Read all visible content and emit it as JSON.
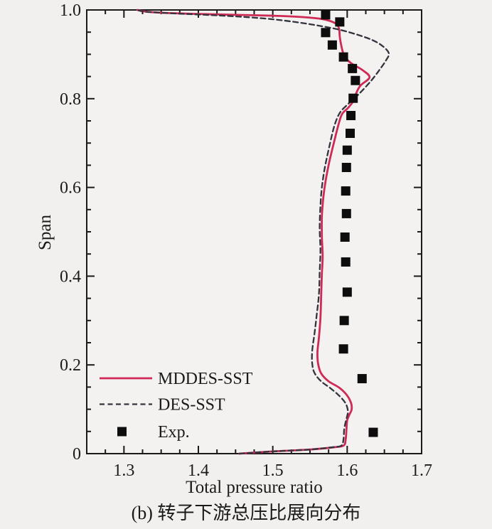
{
  "figure": {
    "caption": "(b) 转子下游总压比展向分布"
  },
  "colors": {
    "background": "#f1f0ee",
    "plot_fill": "#f3f2f0",
    "axis": "#1a1a1a",
    "mddes_line": "#ce2a55",
    "des_line": "#34343e",
    "exp_marker": "#0d0d0d"
  },
  "chart_data": {
    "type": "line",
    "title": "",
    "xlabel": "Total pressure ratio",
    "ylabel": "Span",
    "xlim": [
      1.25,
      1.7
    ],
    "ylim": [
      0.0,
      1.0
    ],
    "grid": false,
    "legend_position": "inside-lower-left",
    "xticks": {
      "major": [
        1.3,
        1.4,
        1.5,
        1.6,
        1.7
      ],
      "labels": [
        "1.3",
        "1.4",
        "1.5",
        "1.6",
        "1.7"
      ],
      "minor_step": 0.025
    },
    "yticks": {
      "major": [
        0.0,
        0.2,
        0.4,
        0.6,
        0.8,
        1.0
      ],
      "labels": [
        "0",
        "0.2",
        "0.4",
        "0.6",
        "0.8",
        "1.0"
      ],
      "minor_step": 0.05
    },
    "series": [
      {
        "name": "MDDES-SST",
        "type": "line",
        "style": "solid",
        "color": "#ce2a55",
        "width": 2.8,
        "points": [
          [
            1.455,
            0.0
          ],
          [
            1.5,
            0.005
          ],
          [
            1.548,
            0.009
          ],
          [
            1.58,
            0.014
          ],
          [
            1.595,
            0.018
          ],
          [
            1.598,
            0.032
          ],
          [
            1.599,
            0.055
          ],
          [
            1.6,
            0.075
          ],
          [
            1.603,
            0.088
          ],
          [
            1.606,
            0.1
          ],
          [
            1.605,
            0.115
          ],
          [
            1.599,
            0.133
          ],
          [
            1.589,
            0.149
          ],
          [
            1.575,
            0.163
          ],
          [
            1.565,
            0.181
          ],
          [
            1.561,
            0.202
          ],
          [
            1.56,
            0.228
          ],
          [
            1.562,
            0.262
          ],
          [
            1.564,
            0.305
          ],
          [
            1.565,
            0.355
          ],
          [
            1.566,
            0.405
          ],
          [
            1.567,
            0.445
          ],
          [
            1.566,
            0.49
          ],
          [
            1.566,
            0.535
          ],
          [
            1.568,
            0.578
          ],
          [
            1.571,
            0.615
          ],
          [
            1.576,
            0.658
          ],
          [
            1.582,
            0.7
          ],
          [
            1.588,
            0.74
          ],
          [
            1.593,
            0.765
          ],
          [
            1.601,
            0.779
          ],
          [
            1.608,
            0.794
          ],
          [
            1.612,
            0.812
          ],
          [
            1.618,
            0.83
          ],
          [
            1.63,
            0.848
          ],
          [
            1.621,
            0.864
          ],
          [
            1.608,
            0.877
          ],
          [
            1.6,
            0.888
          ],
          [
            1.595,
            0.901
          ],
          [
            1.592,
            0.92
          ],
          [
            1.59,
            0.94
          ],
          [
            1.589,
            0.958
          ],
          [
            1.584,
            0.97
          ],
          [
            1.568,
            0.979
          ],
          [
            1.54,
            0.984
          ],
          [
            1.5,
            0.987
          ],
          [
            1.45,
            0.989
          ],
          [
            1.4,
            0.991
          ],
          [
            1.36,
            0.993
          ],
          [
            1.33,
            0.996
          ],
          [
            1.318,
            1.0
          ]
        ]
      },
      {
        "name": "DES-SST",
        "type": "line",
        "style": "dashed",
        "color": "#34343e",
        "width": 2.3,
        "dash": "7 4.5",
        "points": [
          [
            1.455,
            0.0
          ],
          [
            1.5,
            0.005
          ],
          [
            1.548,
            0.009
          ],
          [
            1.578,
            0.014
          ],
          [
            1.592,
            0.018
          ],
          [
            1.595,
            0.032
          ],
          [
            1.596,
            0.055
          ],
          [
            1.598,
            0.072
          ],
          [
            1.6,
            0.085
          ],
          [
            1.601,
            0.096
          ],
          [
            1.598,
            0.113
          ],
          [
            1.589,
            0.131
          ],
          [
            1.577,
            0.148
          ],
          [
            1.565,
            0.163
          ],
          [
            1.556,
            0.182
          ],
          [
            1.553,
            0.203
          ],
          [
            1.553,
            0.232
          ],
          [
            1.556,
            0.27
          ],
          [
            1.559,
            0.312
          ],
          [
            1.562,
            0.36
          ],
          [
            1.563,
            0.41
          ],
          [
            1.564,
            0.458
          ],
          [
            1.563,
            0.508
          ],
          [
            1.564,
            0.558
          ],
          [
            1.566,
            0.6
          ],
          [
            1.57,
            0.645
          ],
          [
            1.577,
            0.7
          ],
          [
            1.583,
            0.74
          ],
          [
            1.59,
            0.768
          ],
          [
            1.6,
            0.786
          ],
          [
            1.61,
            0.801
          ],
          [
            1.62,
            0.818
          ],
          [
            1.632,
            0.84
          ],
          [
            1.643,
            0.864
          ],
          [
            1.652,
            0.886
          ],
          [
            1.656,
            0.902
          ],
          [
            1.648,
            0.918
          ],
          [
            1.634,
            0.932
          ],
          [
            1.614,
            0.944
          ],
          [
            1.591,
            0.955
          ],
          [
            1.567,
            0.963
          ],
          [
            1.538,
            0.971
          ],
          [
            1.5,
            0.979
          ],
          [
            1.455,
            0.985
          ],
          [
            1.41,
            0.989
          ],
          [
            1.37,
            0.992
          ],
          [
            1.33,
            0.996
          ],
          [
            1.318,
            1.0
          ]
        ]
      },
      {
        "name": "Exp.",
        "type": "scatter",
        "marker": "square",
        "color": "#0d0d0d",
        "size": 13,
        "points": [
          [
            1.571,
            0.989
          ],
          [
            1.59,
            0.973
          ],
          [
            1.571,
            0.949
          ],
          [
            1.58,
            0.921
          ],
          [
            1.595,
            0.894
          ],
          [
            1.607,
            0.868
          ],
          [
            1.611,
            0.841
          ],
          [
            1.608,
            0.801
          ],
          [
            1.605,
            0.762
          ],
          [
            1.604,
            0.722
          ],
          [
            1.6,
            0.684
          ],
          [
            1.599,
            0.645
          ],
          [
            1.598,
            0.592
          ],
          [
            1.599,
            0.541
          ],
          [
            1.597,
            0.488
          ],
          [
            1.598,
            0.432
          ],
          [
            1.6,
            0.364
          ],
          [
            1.596,
            0.3
          ],
          [
            1.595,
            0.236
          ],
          [
            1.62,
            0.169
          ],
          [
            1.635,
            0.048
          ]
        ]
      }
    ]
  }
}
